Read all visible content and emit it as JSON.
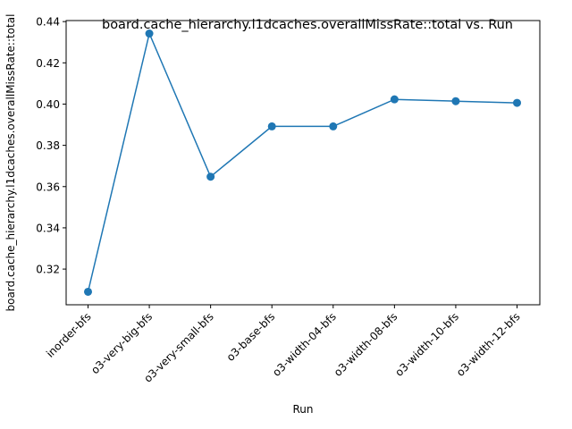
{
  "chart_data": {
    "type": "line",
    "title": "board.cache_hierarchy.l1dcaches.overallMissRate::total vs. Run",
    "xlabel": "Run",
    "ylabel": "board.cache_hierarchy.l1dcaches.overallMissRate::total",
    "categories": [
      "inorder-bfs",
      "o3-very-big-bfs",
      "o3-very-small-bfs",
      "o3-base-bfs",
      "o3-width-04-bfs",
      "o3-width-08-bfs",
      "o3-width-10-bfs",
      "o3-width-12-bfs"
    ],
    "values": [
      0.309,
      0.4342,
      0.3648,
      0.3892,
      0.3892,
      0.4023,
      0.4014,
      0.4006
    ],
    "yticks": [
      "0.32",
      "0.34",
      "0.36",
      "0.38",
      "0.40",
      "0.42",
      "0.44"
    ],
    "yticks_values": [
      0.32,
      0.34,
      0.36,
      0.38,
      0.4,
      0.42,
      0.44
    ],
    "ylim": [
      0.3027,
      0.4405
    ],
    "grid": false,
    "line_color": "#1f77b4",
    "marker": "circle"
  }
}
